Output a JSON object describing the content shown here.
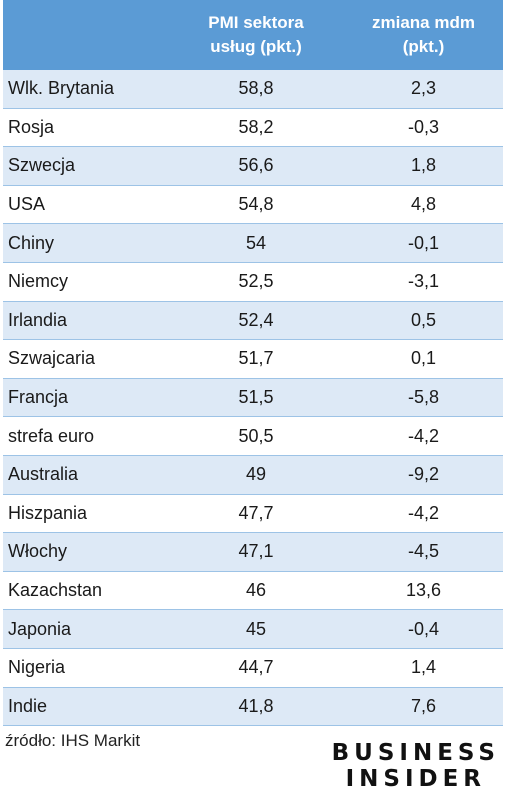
{
  "chart_data": {
    "type": "table",
    "columns": [
      "",
      "PMI sektora usług (pkt.)",
      "zmiana mdm (pkt.)"
    ],
    "rows": [
      {
        "country": "Wlk. Brytania",
        "pmi": "58,8",
        "change": "2,3"
      },
      {
        "country": "Rosja",
        "pmi": "58,2",
        "change": "-0,3"
      },
      {
        "country": "Szwecja",
        "pmi": "56,6",
        "change": "1,8"
      },
      {
        "country": "USA",
        "pmi": "54,8",
        "change": "4,8"
      },
      {
        "country": "Chiny",
        "pmi": "54",
        "change": "-0,1"
      },
      {
        "country": "Niemcy",
        "pmi": "52,5",
        "change": "-3,1"
      },
      {
        "country": "Irlandia",
        "pmi": "52,4",
        "change": "0,5"
      },
      {
        "country": "Szwajcaria",
        "pmi": "51,7",
        "change": "0,1"
      },
      {
        "country": "Francja",
        "pmi": "51,5",
        "change": "-5,8"
      },
      {
        "country": "strefa euro",
        "pmi": "50,5",
        "change": "-4,2"
      },
      {
        "country": "Australia",
        "pmi": "49",
        "change": "-9,2"
      },
      {
        "country": "Hiszpania",
        "pmi": "47,7",
        "change": "-4,2"
      },
      {
        "country": "Włochy",
        "pmi": "47,1",
        "change": "-4,5"
      },
      {
        "country": "Kazachstan",
        "pmi": "46",
        "change": "13,6"
      },
      {
        "country": "Japonia",
        "pmi": "45",
        "change": "-0,4"
      },
      {
        "country": "Nigeria",
        "pmi": "44,7",
        "change": "1,4"
      },
      {
        "country": "Indie",
        "pmi": "41,8",
        "change": "7,6"
      }
    ]
  },
  "header": {
    "col2_line1": "PMI sektora",
    "col2_line2": "usług (pkt.)",
    "col3_line1": "zmiana mdm",
    "col3_line2": "(pkt.)"
  },
  "source": "źródło: IHS Markit",
  "logo": {
    "line1": "BUSINESS",
    "line2": "INSIDER"
  },
  "colors": {
    "header_bg": "#5b9bd5",
    "band_bg": "#dde9f6",
    "rule": "#9dc3e6"
  }
}
